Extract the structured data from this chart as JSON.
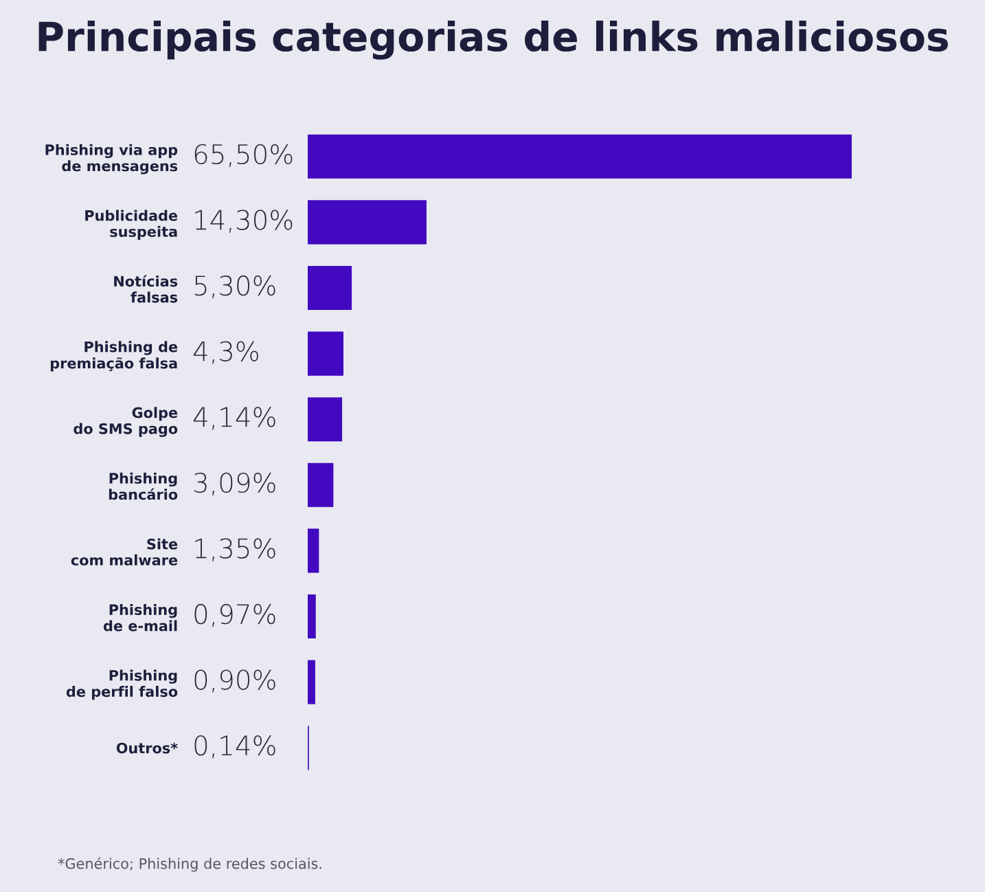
{
  "chart_data": {
    "type": "bar",
    "orientation": "horizontal",
    "title": "Principais categorias de links maliciosos",
    "categories": [
      "Phishing via app\nde mensagens",
      "Publicidade\nsuspeita",
      "Notícias\nfalsas",
      "Phishing de\npremiação falsa",
      "Golpe\ndo SMS pago",
      "Phishing\nbancário",
      "Site\ncom malware",
      "Phishing\nde e-mail",
      "Phishing\nde perfil falso",
      "Outros*"
    ],
    "values": [
      65.5,
      14.3,
      5.3,
      4.3,
      4.14,
      3.09,
      1.35,
      0.97,
      0.9,
      0.14
    ],
    "value_labels": [
      "65,50%",
      "14,30%",
      "5,30%",
      "4,3%",
      "4,14%",
      "3,09%",
      "1,35%",
      "0,97%",
      "0,90%",
      "0,14%"
    ],
    "color": "#4209c0",
    "annotations": [
      "*Genérico; Phishing de redes sociais."
    ],
    "grid": false,
    "legend": false
  }
}
